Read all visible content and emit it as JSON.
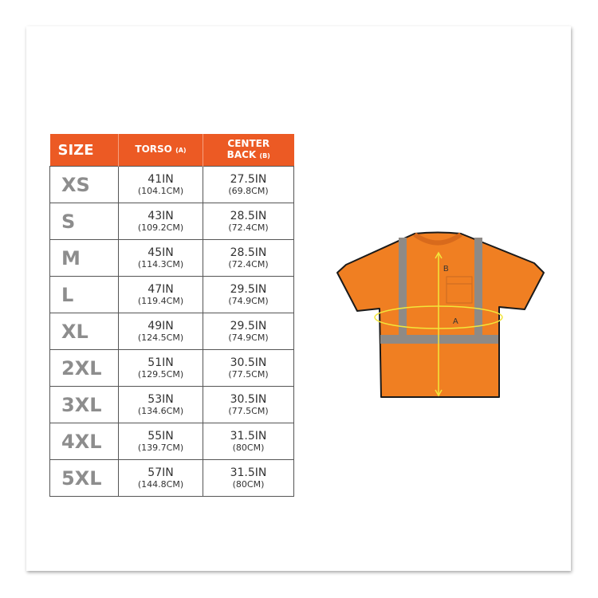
{
  "table": {
    "headers": {
      "size": "SIZE",
      "torso": "TORSO",
      "torso_key": "(A)",
      "center_back_1": "CENTER",
      "center_back_2": "BACK",
      "center_back_key": "(B)"
    },
    "rows": [
      {
        "size": "XS",
        "torso_in": "41IN",
        "torso_cm": "(104.1CM)",
        "back_in": "27.5IN",
        "back_cm": "(69.8CM)"
      },
      {
        "size": "S",
        "torso_in": "43IN",
        "torso_cm": "(109.2CM)",
        "back_in": "28.5IN",
        "back_cm": "(72.4CM)"
      },
      {
        "size": "M",
        "torso_in": "45IN",
        "torso_cm": "(114.3CM)",
        "back_in": "28.5IN",
        "back_cm": "(72.4CM)"
      },
      {
        "size": "L",
        "torso_in": "47IN",
        "torso_cm": "(119.4CM)",
        "back_in": "29.5IN",
        "back_cm": "(74.9CM)"
      },
      {
        "size": "XL",
        "torso_in": "49IN",
        "torso_cm": "(124.5CM)",
        "back_in": "29.5IN",
        "back_cm": "(74.9CM)"
      },
      {
        "size": "2XL",
        "torso_in": "51IN",
        "torso_cm": "(129.5CM)",
        "back_in": "30.5IN",
        "back_cm": "(77.5CM)"
      },
      {
        "size": "3XL",
        "torso_in": "53IN",
        "torso_cm": "(134.6CM)",
        "back_in": "30.5IN",
        "back_cm": "(77.5CM)"
      },
      {
        "size": "4XL",
        "torso_in": "55IN",
        "torso_cm": "(139.7CM)",
        "back_in": "31.5IN",
        "back_cm": "(80CM)"
      },
      {
        "size": "5XL",
        "torso_in": "57IN",
        "torso_cm": "(144.8CM)",
        "back_in": "31.5IN",
        "back_cm": "(80CM)"
      }
    ]
  },
  "diagram": {
    "label_a": "A",
    "label_b": "B"
  },
  "colors": {
    "header": "#ec5a24",
    "shirt": "#f07f22",
    "stripe": "#8e8a86",
    "measure": "#f2e63a"
  }
}
